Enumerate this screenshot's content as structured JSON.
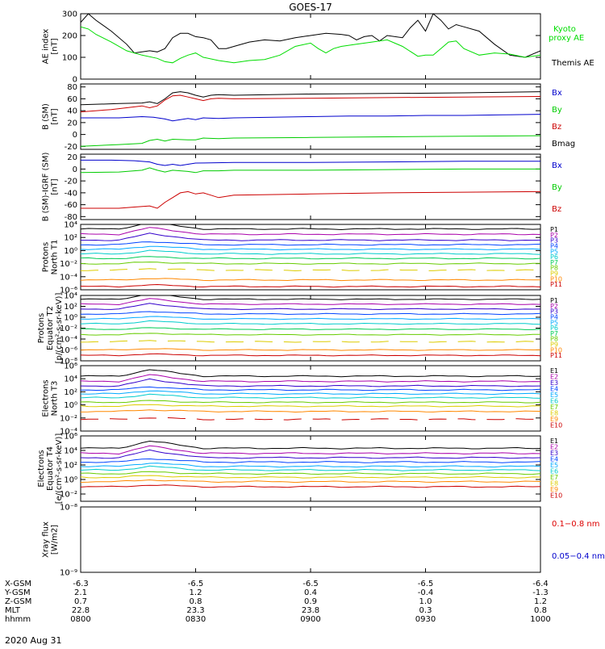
{
  "title": "GOES-17",
  "date_label": "2020 Aug 31",
  "time_axis": {
    "start_minutes": 0,
    "end_minutes": 120,
    "ticks": [
      {
        "t": 0,
        "XGSM": "-6.3",
        "YGSM": "2.1",
        "ZGSM": "0.7",
        "MLT": "22.8",
        "hhmm": "0800"
      },
      {
        "t": 30,
        "XGSM": "-6.5",
        "YGSM": "1.2",
        "ZGSM": "0.8",
        "MLT": "23.3",
        "hhmm": "0830"
      },
      {
        "t": 60,
        "XGSM": "-6.5",
        "YGSM": "0.4",
        "ZGSM": "0.9",
        "MLT": "23.8",
        "hhmm": "0900"
      },
      {
        "t": 90,
        "XGSM": "-6.5",
        "YGSM": "-0.4",
        "ZGSM": "1.0",
        "MLT": "0.3",
        "hhmm": "0930"
      },
      {
        "t": 120,
        "XGSM": "-6.4",
        "YGSM": "-1.3",
        "ZGSM": "1.2",
        "MLT": "0.8",
        "hhmm": "1000"
      }
    ],
    "row_labels": [
      "X-GSM",
      "Y-GSM",
      "Z-GSM",
      "MLT",
      "hhmm"
    ]
  },
  "chart_data": [
    {
      "type": "line",
      "panel": "ae",
      "ylabel": [
        "AE index",
        "[nT]"
      ],
      "yscale": "linear",
      "ylim": [
        0,
        300
      ],
      "yticks": [
        0,
        100,
        200,
        300
      ],
      "tick_labels": [
        "0",
        "100",
        "200",
        "300"
      ],
      "series": [
        {
          "name": "Themis AE",
          "label": "Themis AE",
          "color": "#000000",
          "x": [
            0,
            2,
            4,
            8,
            12,
            14,
            16,
            18,
            20,
            22,
            24,
            26,
            28,
            30,
            32,
            34,
            36,
            38,
            40,
            44,
            48,
            52,
            56,
            60,
            64,
            68,
            70,
            72,
            74,
            76,
            78,
            80,
            84,
            86,
            88,
            90,
            92,
            94,
            96,
            98,
            100,
            104,
            108,
            112,
            116,
            120
          ],
          "y": [
            260,
            300,
            270,
            220,
            160,
            120,
            125,
            130,
            125,
            140,
            190,
            210,
            210,
            195,
            190,
            180,
            140,
            140,
            150,
            170,
            180,
            175,
            190,
            200,
            210,
            205,
            200,
            180,
            195,
            200,
            175,
            200,
            190,
            235,
            270,
            220,
            300,
            270,
            230,
            250,
            240,
            220,
            160,
            110,
            100,
            130
          ]
        },
        {
          "name": "Kyoto proxy AE",
          "label": "Kyoto\nproxy AE",
          "color": "#00dd00",
          "x": [
            0,
            2,
            4,
            8,
            12,
            16,
            20,
            22,
            24,
            26,
            28,
            30,
            32,
            36,
            40,
            44,
            48,
            52,
            56,
            60,
            62,
            64,
            66,
            68,
            72,
            76,
            80,
            84,
            88,
            90,
            92,
            94,
            96,
            98,
            100,
            104,
            108,
            112,
            116,
            120
          ],
          "y": [
            240,
            230,
            205,
            170,
            130,
            110,
            95,
            80,
            75,
            95,
            110,
            120,
            100,
            85,
            75,
            85,
            90,
            110,
            150,
            165,
            140,
            120,
            140,
            150,
            160,
            170,
            180,
            150,
            105,
            110,
            110,
            140,
            170,
            175,
            140,
            110,
            120,
            115,
            100,
            110
          ]
        }
      ]
    },
    {
      "type": "line",
      "panel": "b",
      "ylabel": [
        "B (SM)",
        "[nT]"
      ],
      "yscale": "linear",
      "ylim": [
        -25,
        85
      ],
      "yticks": [
        -20,
        0,
        20,
        40,
        60,
        80
      ],
      "tick_labels": [
        "-20",
        "0",
        "20",
        "40",
        "60",
        "80"
      ],
      "series": [
        {
          "name": "Bx",
          "label": "Bx",
          "color": "#0000cc",
          "x": [
            0,
            10,
            16,
            19,
            22,
            24,
            26,
            28,
            30,
            32,
            36,
            40,
            50,
            60,
            70,
            80,
            90,
            100,
            110,
            120
          ],
          "y": [
            28,
            28,
            30,
            29,
            26,
            23,
            25,
            27,
            25,
            28,
            27,
            28,
            29,
            30,
            31,
            31,
            32,
            32,
            33,
            34
          ]
        },
        {
          "name": "By",
          "label": "By",
          "color": "#00cc00",
          "x": [
            0,
            10,
            16,
            18,
            20,
            22,
            24,
            28,
            30,
            32,
            36,
            40,
            60,
            80,
            100,
            120
          ],
          "y": [
            -20,
            -17,
            -15,
            -10,
            -8,
            -11,
            -8,
            -9,
            -9,
            -6,
            -7,
            -6,
            -5,
            -4,
            -3,
            -2
          ]
        },
        {
          "name": "Bz",
          "label": "Bz",
          "color": "#cc0000",
          "x": [
            0,
            8,
            12,
            16,
            18,
            20,
            22,
            24,
            26,
            28,
            30,
            32,
            34,
            36,
            40,
            60,
            80,
            100,
            120
          ],
          "y": [
            38,
            42,
            45,
            48,
            45,
            48,
            58,
            65,
            66,
            63,
            60,
            57,
            60,
            61,
            60,
            61,
            62,
            63,
            64
          ]
        },
        {
          "name": "Bmag",
          "label": "Bmag",
          "color": "#000000",
          "x": [
            0,
            10,
            16,
            18,
            20,
            22,
            24,
            26,
            28,
            30,
            32,
            34,
            36,
            40,
            60,
            80,
            100,
            120
          ],
          "y": [
            50,
            52,
            53,
            55,
            52,
            60,
            70,
            72,
            70,
            66,
            63,
            66,
            67,
            66,
            68,
            69,
            70,
            72
          ]
        }
      ]
    },
    {
      "type": "line",
      "panel": "dbigrf",
      "ylabel": [
        "B (SM)-IGRF (SM)",
        "[nT]"
      ],
      "yscale": "linear",
      "ylim": [
        -85,
        25
      ],
      "yticks": [
        -80,
        -60,
        -40,
        -20,
        0,
        20
      ],
      "tick_labels": [
        "-80",
        "-60",
        "-40",
        "-20",
        "0",
        "20"
      ],
      "series": [
        {
          "name": "Bx",
          "label": "Bx",
          "color": "#0000cc",
          "x": [
            0,
            8,
            14,
            18,
            20,
            22,
            24,
            26,
            28,
            30,
            40,
            60,
            80,
            100,
            120
          ],
          "y": [
            15,
            15,
            14,
            12,
            8,
            6,
            8,
            6,
            8,
            10,
            11,
            11,
            12,
            13,
            13
          ]
        },
        {
          "name": "By",
          "label": "By",
          "color": "#00cc00",
          "x": [
            0,
            10,
            16,
            18,
            20,
            22,
            24,
            28,
            30,
            32,
            36,
            40,
            60,
            80,
            100,
            120
          ],
          "y": [
            -6,
            -5,
            -2,
            2,
            -2,
            -5,
            -2,
            -4,
            -6,
            -3,
            -3,
            -2,
            -2,
            -1,
            0,
            0
          ]
        },
        {
          "name": "Bz",
          "label": "Bz",
          "color": "#cc0000",
          "x": [
            0,
            10,
            14,
            18,
            20,
            22,
            24,
            26,
            28,
            30,
            32,
            34,
            36,
            40,
            60,
            80,
            100,
            120
          ],
          "y": [
            -66,
            -66,
            -64,
            -62,
            -66,
            -56,
            -48,
            -40,
            -38,
            -42,
            -40,
            -44,
            -48,
            -44,
            -42,
            -40,
            -39,
            -38
          ]
        }
      ]
    },
    {
      "type": "line",
      "panel": "p1",
      "ylabel": [
        "Protons",
        "North T1"
      ],
      "yscale": "log",
      "ylim": [
        -6,
        4
      ],
      "yticks": [
        -6,
        -4,
        -2,
        0,
        2,
        4
      ],
      "tick_labels": [
        "10⁻⁶",
        "10⁻⁴",
        "10⁻²",
        "10⁰",
        "10²",
        "10⁴"
      ],
      "channels": [
        "P1",
        "P2",
        "P3",
        "P4",
        "P5",
        "P6",
        "P7",
        "P8",
        "P9",
        "P10",
        "P11"
      ],
      "channel_colors": [
        "#000000",
        "#aa00aa",
        "#3300cc",
        "#0044ff",
        "#00aaff",
        "#00cccc",
        "#00cc55",
        "#66cc00",
        "#ddcc00",
        "#ff8800",
        "#cc0000"
      ],
      "levels": [
        3.3,
        2.5,
        1.6,
        0.9,
        0.2,
        -0.5,
        -1.2,
        -2.0,
        -3.0,
        -4.5,
        -5.5
      ],
      "dashed": [
        false,
        false,
        false,
        false,
        false,
        false,
        false,
        false,
        true,
        false,
        false
      ]
    },
    {
      "type": "line",
      "panel": "p2",
      "ylabel": [
        "Protons",
        "Equator T2",
        "[p/(cm²-s-sr-keV)]"
      ],
      "yscale": "log",
      "ylim": [
        -8,
        4
      ],
      "yticks": [
        -8,
        -6,
        -4,
        -2,
        0,
        2,
        4
      ],
      "tick_labels": [
        "10⁻⁸",
        "10⁻⁶",
        "10⁻⁴",
        "10⁻²",
        "10⁰",
        "10²",
        "10⁴"
      ],
      "channels": [
        "P1",
        "P2",
        "P3",
        "P4",
        "P5",
        "P6",
        "P7",
        "P8",
        "P9",
        "P10",
        "P11"
      ],
      "channel_colors": [
        "#000000",
        "#aa00aa",
        "#3300cc",
        "#0044ff",
        "#00aaff",
        "#00cccc",
        "#00cc55",
        "#66cc00",
        "#ddcc00",
        "#ff8800",
        "#cc0000"
      ],
      "levels": [
        3.3,
        2.4,
        1.5,
        0.6,
        -0.3,
        -1.2,
        -2.2,
        -3.2,
        -4.5,
        -6.0,
        -7.0
      ],
      "dashed": [
        false,
        false,
        false,
        false,
        false,
        false,
        false,
        false,
        true,
        false,
        false
      ]
    },
    {
      "type": "line",
      "panel": "e3",
      "ylabel": [
        "Electrons",
        "North T3"
      ],
      "yscale": "log",
      "ylim": [
        -4,
        6
      ],
      "yticks": [
        -4,
        -2,
        0,
        2,
        4,
        6
      ],
      "tick_labels": [
        "10⁻⁴",
        "10⁻²",
        "10⁰",
        "10²",
        "10⁴",
        "10⁶"
      ],
      "channels": [
        "E1",
        "E2",
        "E3",
        "E4",
        "E5",
        "E6",
        "E7",
        "E8",
        "E9",
        "E10"
      ],
      "channel_colors": [
        "#000000",
        "#aa00aa",
        "#3300cc",
        "#0044ff",
        "#00aaff",
        "#00cccc",
        "#66cc00",
        "#ddcc00",
        "#ff8800",
        "#cc0000"
      ],
      "levels": [
        4.4,
        3.6,
        2.9,
        2.3,
        1.7,
        1.1,
        0.4,
        -0.2,
        -1.0,
        -2.2
      ],
      "dashed": [
        false,
        false,
        false,
        false,
        false,
        false,
        false,
        false,
        false,
        true
      ]
    },
    {
      "type": "line",
      "panel": "e4",
      "ylabel": [
        "Electrons",
        "Equator T4",
        "[e/(cm²-s-sr-keV)]"
      ],
      "yscale": "log",
      "ylim": [
        -3,
        6
      ],
      "yticks": [
        -2,
        0,
        2,
        4,
        6
      ],
      "tick_labels": [
        "10⁻²",
        "10⁰",
        "10²",
        "10⁴",
        "10⁶"
      ],
      "channels": [
        "E1",
        "E2",
        "E3",
        "E4",
        "E5",
        "E6",
        "E7",
        "E8",
        "E9",
        "E10"
      ],
      "channel_colors": [
        "#000000",
        "#aa00aa",
        "#3300cc",
        "#0044ff",
        "#00aaff",
        "#00cccc",
        "#66cc00",
        "#ddcc00",
        "#ff8800",
        "#cc0000"
      ],
      "levels": [
        4.3,
        3.6,
        3.0,
        2.4,
        1.8,
        1.3,
        0.8,
        0.3,
        -0.3,
        -1.0
      ],
      "dashed": [
        false,
        false,
        false,
        false,
        false,
        false,
        false,
        false,
        false,
        false
      ]
    },
    {
      "type": "line",
      "panel": "xray",
      "ylabel": [
        "Xray flux",
        "[W/m2]"
      ],
      "yscale": "log",
      "ylim": [
        -9,
        -8
      ],
      "yticks": [
        -9,
        -8
      ],
      "tick_labels": [
        "10⁻⁹",
        "10⁻⁸"
      ],
      "series": [
        {
          "name": "0.1-0.8 nm",
          "label": "0.1−0.8 nm",
          "color": "#dd0000"
        },
        {
          "name": "0.05-0.4 nm",
          "label": "0.05−0.4 nm",
          "color": "#0000cc"
        }
      ]
    }
  ]
}
